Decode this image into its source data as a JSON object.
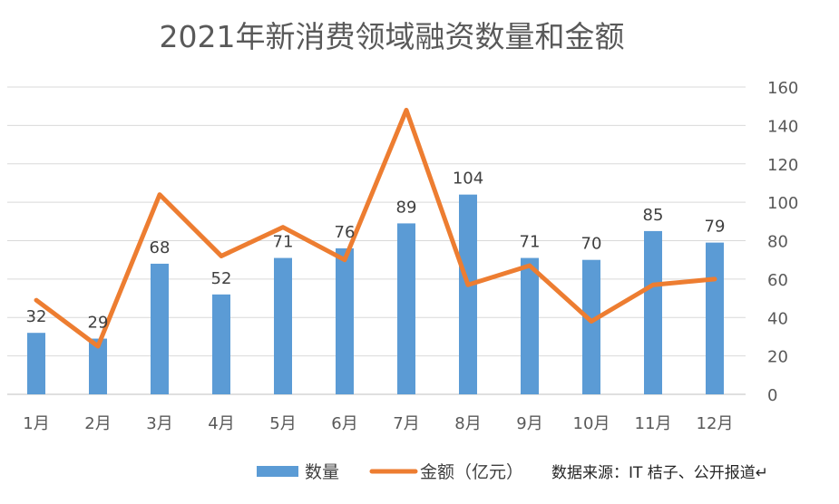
{
  "chart_data": {
    "type": "bar",
    "title": "2021年新消费领域融资数量和金额",
    "categories": [
      "1月",
      "2月",
      "3月",
      "4月",
      "5月",
      "6月",
      "7月",
      "8月",
      "9月",
      "10月",
      "11月",
      "12月"
    ],
    "series": [
      {
        "name": "数量",
        "kind": "bar",
        "color": "#5B9BD5",
        "values": [
          32,
          29,
          68,
          52,
          71,
          76,
          89,
          104,
          71,
          70,
          85,
          79
        ]
      },
      {
        "name": "金额（亿元）",
        "kind": "line",
        "color": "#ED7D31",
        "values": [
          49,
          25,
          104,
          72,
          87,
          70,
          148,
          57,
          67,
          38,
          57,
          60
        ]
      }
    ],
    "ylim": [
      0,
      160
    ],
    "yticks": [
      "0",
      "20",
      "40",
      "60",
      "80",
      "100",
      "120",
      "140",
      "160"
    ],
    "grid": true,
    "legend": "bottom",
    "source_note": "数据来源：IT 桔子、公开报道↵"
  }
}
